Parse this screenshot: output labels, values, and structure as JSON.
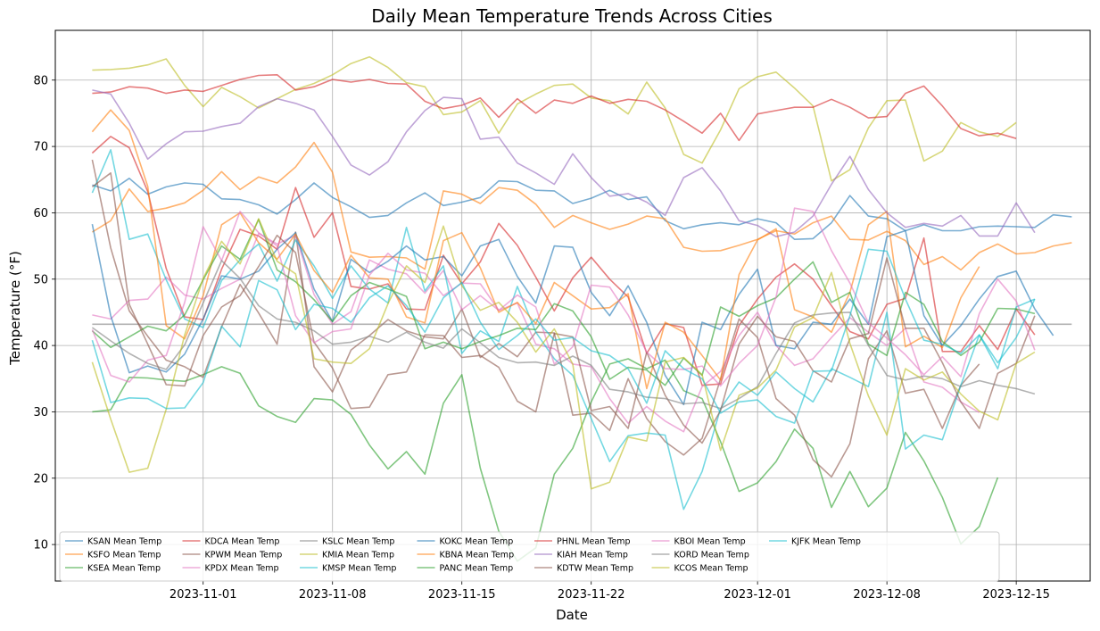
{
  "chart_data": {
    "type": "line",
    "title": "Daily Mean Temperature Trends Across Cities",
    "xlabel": "Date",
    "ylabel": "Temperature (°F)",
    "x_start": "2023-10-26",
    "xlim": [
      "2023-10-24",
      "2023-12-19"
    ],
    "ylim": [
      4.5,
      87.5
    ],
    "x_ticks": [
      "2023-11-01",
      "2023-11-08",
      "2023-11-15",
      "2023-11-22",
      "2023-12-01",
      "2023-12-08",
      "2023-12-15"
    ],
    "y_ticks": [
      10,
      20,
      30,
      40,
      50,
      60,
      70,
      80
    ],
    "grid": true,
    "legend_position": "lower-left",
    "legend_columns": 8,
    "series": [
      {
        "name": "KSAN Mean Temp",
        "color": "#1f77b4",
        "values": [
          64.2,
          63.3,
          65.2,
          62.8,
          63.9,
          64.5,
          64.3,
          62.1,
          62.0,
          61.2,
          59.8,
          62.0,
          64.5,
          62.3,
          60.9,
          59.3,
          59.6,
          61.5,
          63.0,
          61.1,
          61.6,
          62.3,
          64.8,
          64.7,
          63.4,
          63.3,
          61.4,
          62.2,
          63.4,
          62.0,
          62.4,
          58.8,
          57.6,
          58.2,
          58.5,
          58.2,
          59.1,
          58.5,
          56.0,
          56.1,
          58.5,
          62.6,
          59.5,
          59.1,
          57.3,
          58.2,
          57.3,
          57.3,
          57.9,
          58.0,
          57.9,
          57.8,
          59.7,
          59.4
        ]
      },
      {
        "name": "KSFO Mean Temp",
        "color": "#ff7f0e",
        "values": [
          57.1,
          58.8,
          63.6,
          60.2,
          60.7,
          61.5,
          63.4,
          66.2,
          63.5,
          65.4,
          64.5,
          66.9,
          70.6,
          66.1,
          54.1,
          53.3,
          53.4,
          53.2,
          51.5,
          63.3,
          62.8,
          61.4,
          63.8,
          63.4,
          61.3,
          57.8,
          59.6,
          58.5,
          57.5,
          58.3,
          59.5,
          59.1,
          54.8,
          54.2,
          54.3,
          55.1,
          56.0,
          57.3,
          56.8,
          58.5,
          59.5,
          56.0,
          55.9,
          57.2,
          55.8,
          52.2,
          53.4,
          51.4,
          54.0,
          55.3,
          53.8,
          54.0,
          55.0,
          55.5
        ]
      },
      {
        "name": "KSEA Mean Temp",
        "color": "#2ca02c",
        "values": [
          30.0,
          30.3,
          35.2,
          35.1,
          34.8,
          34.6,
          35.6,
          36.8,
          35.8,
          30.9,
          29.3,
          28.4,
          32.0,
          31.8,
          29.6,
          25.0,
          21.4,
          24.0,
          20.6,
          31.3,
          35.6,
          21.5,
          12.0,
          7.5,
          9.5,
          20.6,
          24.5,
          31.5,
          37.2,
          38.0,
          36.5,
          37.8,
          33.2,
          32.0,
          25.5,
          18.0,
          19.3,
          22.5,
          27.4,
          24.5,
          15.6,
          21.0,
          15.7,
          18.5,
          26.9,
          22.6,
          17.1,
          10.1,
          12.7,
          20.1
        ]
      },
      {
        "name": "KDCA Mean Temp",
        "color": "#d62728",
        "values": [
          69.0,
          71.5,
          69.8,
          63.2,
          51.6,
          44.3,
          43.9,
          51.5,
          57.5,
          56.5,
          54.5,
          63.8,
          56.3,
          60.0,
          48.9,
          48.5,
          49.3,
          45.5,
          45.4,
          53.6,
          49.3,
          52.6,
          58.4,
          55.1,
          50.3,
          45.2,
          50.2,
          53.3,
          50.0,
          47.3,
          38.8,
          43.3,
          42.7,
          34.0,
          34.2,
          43.0,
          47.0,
          50.3,
          52.3,
          50.0,
          46.0,
          42.1,
          41.0,
          46.2,
          47.1,
          56.2,
          39.1,
          39.1,
          43.0,
          39.4,
          45.5,
          41.6
        ]
      },
      {
        "name": "KPWM Mean Temp",
        "color": "#8c564b",
        "values": [
          68.0,
          54.7,
          45.2,
          41.4,
          37.8,
          36.8,
          35.2,
          42.8,
          49.2,
          44.9,
          40.2,
          57.1,
          36.8,
          33.0,
          39.3,
          41.5,
          43.9,
          42.2,
          41.3,
          41.0,
          45.5,
          38.2,
          40.3,
          38.3,
          42.0,
          41.9,
          29.5,
          29.8,
          27.2,
          35.0,
          29.0,
          25.5,
          23.5,
          26.0,
          35.0,
          44.0,
          41.2,
          32.0,
          29.5,
          22.8,
          20.2,
          25.2,
          38.0,
          42.2,
          32.8,
          33.4,
          27.5,
          34.0,
          37.2
        ]
      },
      {
        "name": "KPDX Mean Temp",
        "color": "#e377c2",
        "values": [
          44.6,
          44.0,
          46.8,
          47.0,
          50.3,
          47.6,
          47.0,
          48.6,
          50.0,
          56.9,
          55.3,
          56.6,
          47.7,
          43.2,
          45.1,
          52.9,
          51.5,
          50.8,
          47.9,
          51.3,
          45.4,
          47.5,
          45.3,
          46.4,
          40.2,
          39.5,
          37.2,
          36.8,
          32.0,
          28.3,
          30.8,
          28.6,
          27.0,
          33.8,
          36.1,
          41.5,
          45.0,
          40.0,
          37.0,
          38.0,
          41.2,
          44.2,
          42.0,
          40.0,
          42.6,
          34.5,
          33.7,
          31.5,
          29.9
        ]
      },
      {
        "name": "KSLC Mean Temp",
        "color": "#7f7f7f",
        "values": [
          43.2,
          43.2,
          43.2,
          43.2,
          43.2,
          43.2,
          43.2,
          43.2,
          43.2,
          43.2,
          43.2,
          43.2,
          43.2,
          43.2,
          43.2,
          43.2,
          43.2,
          43.2,
          43.2,
          43.2,
          43.2,
          43.2,
          43.2,
          43.2,
          43.2,
          43.2,
          43.2,
          43.2,
          43.2,
          43.2,
          43.2,
          43.2,
          43.2,
          43.2,
          43.2,
          43.2,
          43.2,
          43.2,
          43.2,
          43.2,
          43.2,
          43.2,
          43.2,
          43.2,
          43.2,
          43.2,
          43.2,
          43.2,
          43.2,
          43.2,
          43.2,
          43.2,
          43.2,
          43.2
        ]
      },
      {
        "name": "KMIA Mean Temp",
        "color": "#bcbd22",
        "values": [
          81.5,
          81.6,
          81.8,
          82.3,
          83.2,
          79.2,
          76.0,
          78.9,
          77.5,
          75.8,
          77.2,
          78.6,
          79.5,
          80.8,
          82.5,
          83.5,
          81.9,
          79.6,
          79.0,
          74.8,
          75.2,
          76.9,
          72.0,
          76.4,
          77.9,
          79.2,
          79.4,
          77.3,
          76.9,
          74.9,
          79.7,
          75.8,
          68.8,
          67.5,
          72.5,
          78.7,
          80.5,
          81.2,
          78.8,
          76.1,
          64.8,
          66.5,
          72.8,
          76.9,
          77.0,
          67.8,
          69.3,
          73.6,
          72.2,
          71.5,
          73.6
        ]
      },
      {
        "name": "KMSP Mean Temp",
        "color": "#17becf",
        "values": [
          63.0,
          69.5,
          56.0,
          56.8,
          49.9,
          44.0,
          42.7,
          49.8,
          52.9,
          55.3,
          49.7,
          55.9,
          52.0,
          47.1,
          52.0,
          48.5,
          46.4,
          57.8,
          48.2,
          52.0,
          38.8,
          42.2,
          40.6,
          48.9,
          42.0,
          38.0,
          35.5,
          29.0,
          22.5,
          26.4,
          26.8,
          26.5,
          15.3,
          21.0,
          30.5,
          34.5,
          32.5,
          36.0,
          33.5,
          31.5,
          36.5,
          35.2,
          33.8,
          45.0,
          24.4,
          26.5,
          25.8,
          34.0,
          41.6,
          36.5,
          45.8,
          47.0
        ]
      },
      {
        "name": "KOKC Mean Temp",
        "color": "#1f77b4",
        "values": [
          58.3,
          44.5,
          35.9,
          36.9,
          36.0,
          38.7,
          44.0,
          50.5,
          50.0,
          51.2,
          54.5,
          57.0,
          48.5,
          43.6,
          53.0,
          51.0,
          52.7,
          55.0,
          52.9,
          53.4,
          50.5,
          55.0,
          56.0,
          50.4,
          46.4,
          55.0,
          54.8,
          48.0,
          44.5,
          49.0,
          43.5,
          35.5,
          31.1,
          43.5,
          42.4,
          47.7,
          51.5,
          40.0,
          39.5,
          43.5,
          43.2,
          47.0,
          43.2,
          56.4,
          57.3,
          44.5,
          40.0,
          43.0,
          47.0,
          50.4,
          51.2,
          45.5,
          41.5
        ]
      },
      {
        "name": "KBNA Mean Temp",
        "color": "#ff7f0e",
        "values": [
          72.2,
          75.5,
          72.4,
          64.0,
          43.0,
          41.0,
          47.5,
          58.2,
          60.0,
          55.5,
          53.0,
          56.8,
          51.3,
          48.0,
          53.6,
          50.2,
          50.0,
          44.3,
          43.4,
          55.8,
          57.0,
          51.7,
          45.0,
          46.5,
          43.3,
          49.5,
          47.5,
          45.5,
          45.7,
          47.8,
          33.5,
          43.5,
          42.0,
          38.5,
          34.8,
          50.7,
          55.9,
          57.6,
          45.4,
          44.3,
          42.0,
          48.0,
          58.2,
          60.2,
          39.8,
          41.4,
          39.7,
          47.2,
          51.9
        ]
      },
      {
        "name": "PANC Mean Temp",
        "color": "#2ca02c",
        "values": [
          42.2,
          39.7,
          41.3,
          42.9,
          42.2,
          44.6,
          49.9,
          55.0,
          53.0,
          59.0,
          51.4,
          49.6,
          46.9,
          43.6,
          47.5,
          49.5,
          48.5,
          47.4,
          39.5,
          40.5,
          39.5,
          40.6,
          41.5,
          42.6,
          42.4,
          46.3,
          45.2,
          41.3,
          34.9,
          36.7,
          36.3,
          34.0,
          38.1,
          35.5,
          45.8,
          44.4,
          46.0,
          47.2,
          50.0,
          52.6,
          46.5,
          48.0,
          40.2,
          38.5,
          48.0,
          46.2,
          40.6,
          38.5,
          40.5,
          45.6,
          45.5,
          44.8
        ]
      },
      {
        "name": "PHNL Mean Temp",
        "color": "#d62728",
        "values": [
          78.0,
          78.2,
          79.0,
          78.8,
          78.0,
          78.5,
          78.3,
          79.2,
          80.1,
          80.7,
          80.8,
          78.5,
          79.0,
          80.1,
          79.7,
          80.1,
          79.5,
          79.4,
          76.8,
          75.7,
          76.2,
          77.3,
          74.4,
          77.2,
          75.0,
          77.0,
          76.5,
          77.6,
          76.5,
          77.1,
          76.8,
          75.5,
          73.8,
          72.0,
          75.0,
          70.9,
          74.9,
          75.4,
          75.9,
          75.9,
          77.1,
          75.9,
          74.3,
          74.5,
          78.0,
          79.1,
          76.1,
          72.7,
          71.6,
          72.0,
          71.2
        ]
      },
      {
        "name": "KIAH Mean Temp",
        "color": "#9467bd",
        "values": [
          78.5,
          77.9,
          73.5,
          68.1,
          70.4,
          72.2,
          72.3,
          73.0,
          73.5,
          76.0,
          77.2,
          76.5,
          75.5,
          71.5,
          67.2,
          65.7,
          67.7,
          72.2,
          75.4,
          77.4,
          77.2,
          71.1,
          71.4,
          67.5,
          66.0,
          64.3,
          68.9,
          65.3,
          62.5,
          62.9,
          61.6,
          59.6,
          65.3,
          66.8,
          63.3,
          58.8,
          58.1,
          56.4,
          57.1,
          59.5,
          64.3,
          68.5,
          63.5,
          60.0,
          57.8,
          58.4,
          58.0,
          59.6,
          56.5,
          56.5,
          61.5,
          57.0
        ]
      },
      {
        "name": "KDTW Mean Temp",
        "color": "#8c564b",
        "values": [
          63.9,
          66.0,
          46.2,
          40.2,
          34.1,
          33.9,
          41.5,
          45.8,
          47.5,
          51.9,
          56.6,
          54.0,
          40.5,
          36.6,
          30.5,
          30.7,
          35.6,
          36.0,
          41.6,
          41.5,
          38.2,
          38.5,
          36.7,
          31.6,
          30.0,
          41.8,
          41.3,
          30.2,
          30.8,
          27.5,
          39.0,
          32.5,
          28.0,
          25.3,
          30.2,
          40.2,
          44.4,
          41.3,
          40.6,
          36.2,
          34.5,
          41.0,
          41.8,
          53.2,
          42.6,
          42.6,
          37.4,
          31.5,
          27.5,
          35.8,
          37.3,
          44.5
        ]
      },
      {
        "name": "KBOI Mean Temp",
        "color": "#e377c2",
        "values": [
          42.4,
          35.5,
          34.5,
          37.8,
          38.5,
          46.5,
          57.9,
          52.8,
          60.2,
          57.0,
          55.0,
          44.5,
          40.4,
          42.1,
          42.5,
          50.6,
          53.9,
          51.4,
          50.9,
          47.5,
          49.4,
          49.3,
          45.3,
          47.6,
          45.8,
          37.2,
          39.8,
          49.1,
          48.8,
          44.6,
          39.0,
          36.5,
          36.4,
          36.9,
          33.9,
          37.3,
          40.0,
          47.3,
          60.7,
          60.2,
          54.3,
          49.4,
          43.4,
          41.1,
          38.6,
          35.6,
          38.3,
          35.3,
          44.8,
          50.0,
          46.7,
          39.3
        ]
      },
      {
        "name": "KORD Mean Temp",
        "color": "#7f7f7f",
        "values": [
          42.7,
          40.7,
          38.8,
          37.3,
          36.4,
          40.1,
          46.4,
          52.8,
          50.1,
          46.0,
          44.0,
          43.5,
          42.2,
          40.2,
          40.5,
          41.4,
          40.5,
          42.0,
          40.5,
          39.6,
          42.5,
          40.4,
          38.2,
          37.4,
          37.5,
          37.0,
          38.4,
          37.0,
          33.4,
          33.0,
          32.2,
          32.0,
          31.2,
          31.4,
          30.5,
          32.0,
          33.8,
          38.8,
          43.4,
          44.6,
          44.9,
          45.0,
          40.0,
          35.5,
          34.8,
          35.4,
          35.0,
          33.8,
          34.7,
          34.0,
          33.5,
          32.7
        ]
      },
      {
        "name": "KCOS Mean Temp",
        "color": "#bcbd22",
        "values": [
          37.5,
          28.9,
          20.9,
          21.5,
          30.4,
          41.6,
          50.1,
          55.7,
          52.3,
          59.1,
          52.7,
          50.8,
          38.0,
          37.5,
          37.3,
          39.5,
          46.3,
          52.0,
          49.5,
          58.0,
          49.0,
          45.3,
          46.5,
          43.5,
          39.0,
          42.5,
          37.2,
          18.4,
          19.4,
          26.2,
          25.6,
          37.5,
          38.2,
          35.6,
          24.2,
          32.5,
          33.6,
          36.3,
          42.8,
          44.2,
          51.0,
          40.3,
          32.4,
          26.5,
          36.5,
          34.8,
          36.0,
          32.7,
          30.1,
          28.8,
          37.3,
          39.0
        ]
      },
      {
        "name": "KJFK Mean Temp",
        "color": "#17becf",
        "values": [
          40.8,
          31.4,
          32.1,
          32.0,
          30.5,
          30.6,
          34.4,
          42.9,
          39.8,
          49.8,
          48.4,
          42.4,
          46.2,
          45.6,
          43.5,
          47.2,
          49.0,
          46.0,
          42.0,
          47.2,
          49.5,
          43.5,
          39.4,
          41.5,
          44.0,
          40.8,
          41.2,
          39.2,
          38.5,
          36.5,
          31.3,
          39.2,
          36.5,
          35.0,
          29.8,
          31.5,
          31.8,
          29.3,
          28.3,
          36.1,
          36.2,
          44.5,
          54.5,
          54.2,
          47.0,
          40.8,
          40.2,
          38.8,
          41.6,
          37.4,
          41.2,
          47.0
        ]
      }
    ]
  }
}
